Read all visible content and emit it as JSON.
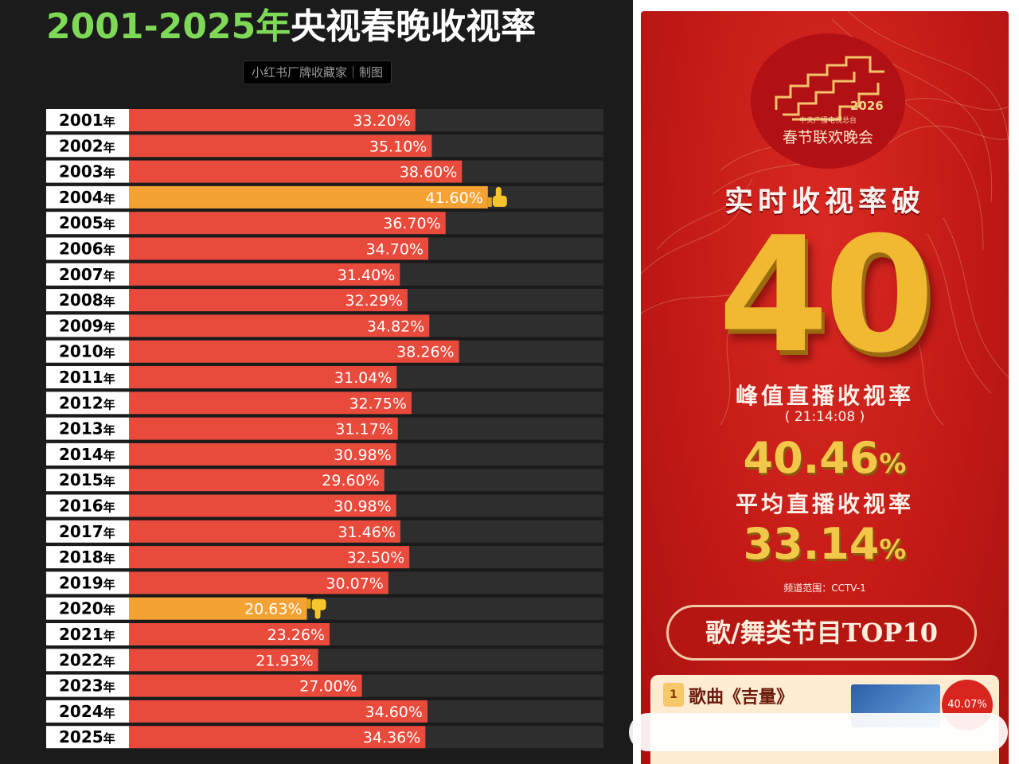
{
  "left_panel": {
    "title_highlight": "2001-2025年",
    "title_rest": "央视春晚收视率",
    "credit": "小红书厂牌收藏家｜制图"
  },
  "chart_data": {
    "type": "bar",
    "orientation": "horizontal",
    "title": "2001-2025年央视春晚收视率",
    "categories": [
      "2001",
      "2002",
      "2003",
      "2004",
      "2005",
      "2006",
      "2007",
      "2008",
      "2009",
      "2010",
      "2011",
      "2012",
      "2013",
      "2014",
      "2015",
      "2016",
      "2017",
      "2018",
      "2019",
      "2020",
      "2021",
      "2022",
      "2023",
      "2024",
      "2025"
    ],
    "category_suffix": "年",
    "values": [
      33.2,
      35.1,
      38.6,
      41.6,
      36.7,
      34.7,
      31.4,
      32.29,
      34.82,
      38.26,
      31.04,
      32.75,
      31.17,
      30.98,
      29.6,
      30.98,
      31.46,
      32.5,
      30.07,
      20.63,
      23.26,
      21.93,
      27.0,
      34.6,
      34.36
    ],
    "value_labels": [
      "33.20%",
      "35.10%",
      "38.60%",
      "41.60%",
      "36.70%",
      "34.70%",
      "31.40%",
      "32.29%",
      "34.82%",
      "38.26%",
      "31.04%",
      "32.75%",
      "31.17%",
      "30.98%",
      "29.60%",
      "30.98%",
      "31.46%",
      "32.50%",
      "30.07%",
      "20.63%",
      "23.26%",
      "21.93%",
      "27.00%",
      "34.60%",
      "34.36%"
    ],
    "highlight": {
      "2004": "thumbs-up-icon",
      "2020": "thumbs-down-icon"
    },
    "xlim": [
      0,
      55
    ],
    "colors": {
      "bar": "#e84a3c",
      "highlight": "#f5a234",
      "track": "#2e2e2e",
      "label_bg": "#ffffff",
      "label_text": "#000000",
      "value_text": "#ffffff"
    }
  },
  "right_panel": {
    "emblem_year": "2026",
    "emblem_org": "中央广播电视总台",
    "emblem_name": "春节联欢晚会",
    "headline": "实时收视率破",
    "headline_number": "40",
    "peak_label": "峰值直播收视率",
    "peak_time": "( 21:14:08 )",
    "peak_value": "40.46",
    "avg_label": "平均直播收视率",
    "avg_value": "33.14",
    "percent_sign": "%",
    "channel": "频道范围：CCTV-1",
    "top10_button": "歌/舞类节目TOP10",
    "card": {
      "rank": "1",
      "title": "歌曲《吉量》",
      "rating": "40.07%"
    }
  }
}
